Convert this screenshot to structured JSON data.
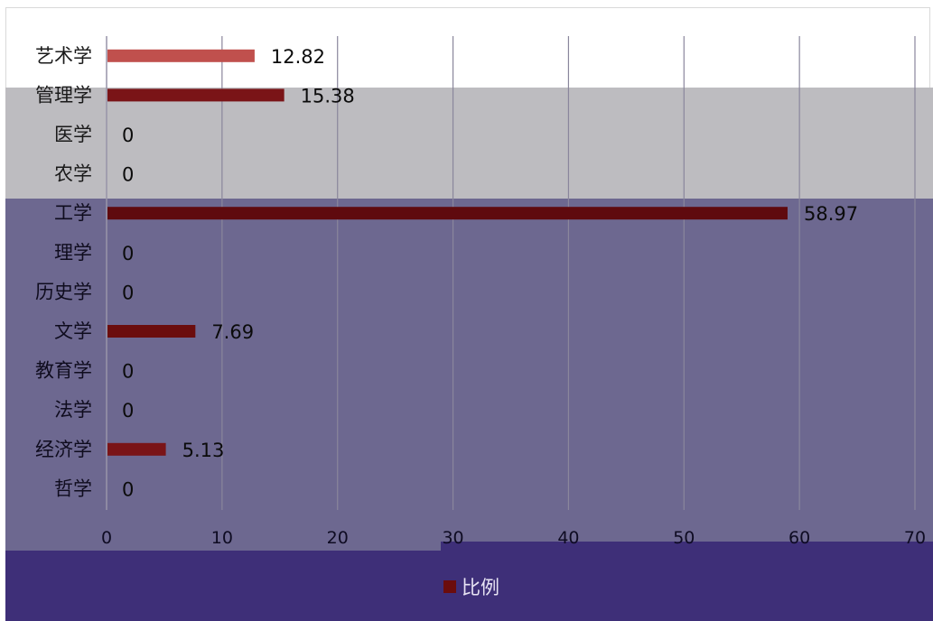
{
  "colors": {
    "bar_palette": [
      "#c0504d",
      "#7a1417",
      "#6b0d0d",
      "#5f0a0e"
    ],
    "axis_text_dark": "#1a1a1a",
    "grid_line": "#8a869c"
  },
  "chart_data": {
    "type": "bar",
    "orientation": "horizontal",
    "categories": [
      "艺术学",
      "管理学",
      "医学",
      "农学",
      "工学",
      "理学",
      "历史学",
      "文学",
      "教育学",
      "法学",
      "经济学",
      "哲学"
    ],
    "series": [
      {
        "name": "比例",
        "values": [
          12.82,
          15.38,
          0,
          0,
          58.97,
          0,
          0,
          7.69,
          0,
          0,
          5.13,
          0
        ]
      }
    ],
    "data_labels": [
      "12.82",
      "15.38",
      "0",
      "0",
      "58.97",
      "0",
      "0",
      "7.69",
      "0",
      "0",
      "5.13",
      "0"
    ],
    "xlim": [
      0,
      70
    ],
    "x_ticks": [
      "0",
      "10",
      "20",
      "30",
      "40",
      "50",
      "60",
      "70"
    ],
    "grid": true,
    "legend_position": "bottom"
  }
}
